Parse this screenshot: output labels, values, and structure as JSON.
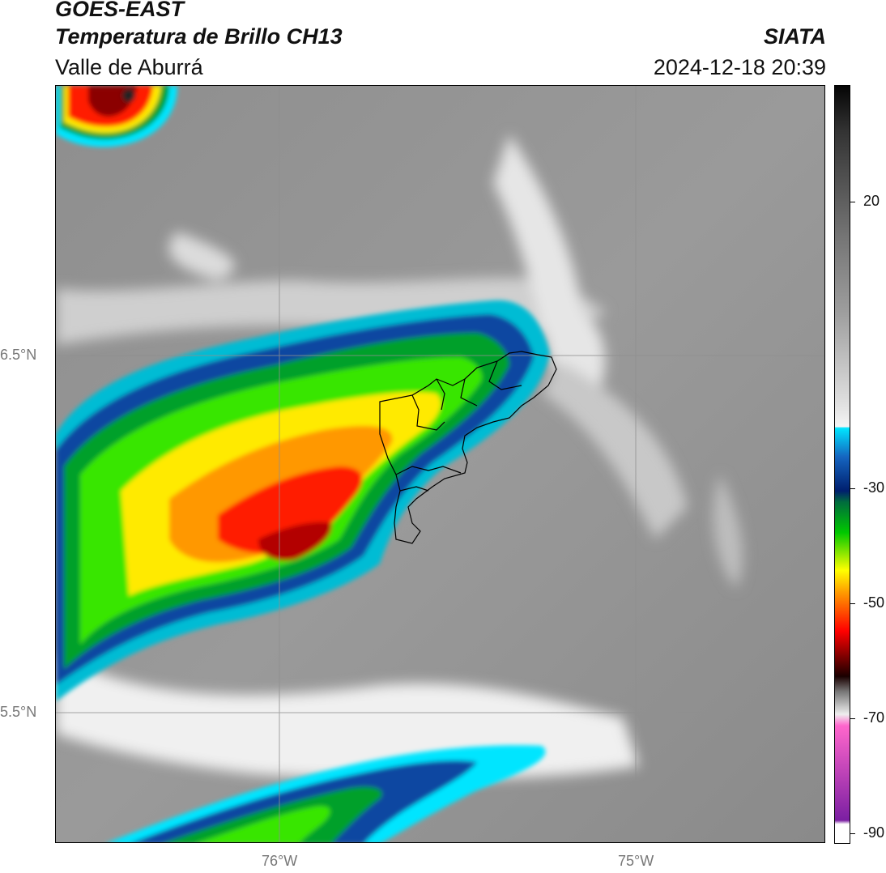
{
  "header": {
    "satellite": "GOES-EAST",
    "product": "Temperatura de Brillo CH13",
    "region": "Valle de Aburrá",
    "agency": "SIATA",
    "datetime": "2024-12-18 20:39"
  },
  "map": {
    "lat_labels": [
      "6.5°N",
      "5.5°N"
    ],
    "lon_labels": [
      "76°W",
      "75°W"
    ],
    "colors": {
      "background_gray": "#8a8a8a",
      "cloud_cold": "#ff0000",
      "gridline": "#9a9a9a"
    }
  },
  "colorbar": {
    "tick_labels": [
      "20",
      "-30",
      "-50",
      "-70",
      "-90"
    ],
    "units": "",
    "range": [
      -90,
      35
    ]
  }
}
